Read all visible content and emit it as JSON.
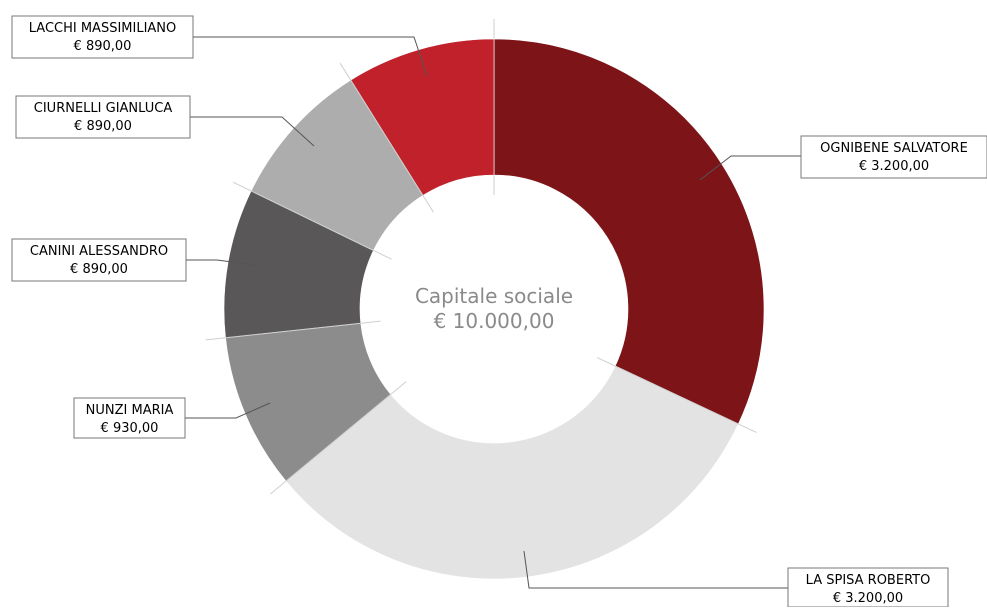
{
  "chart_data": {
    "type": "pie",
    "center": {
      "title": "Capitale sociale",
      "value": "€ 10.000,00"
    },
    "slices": [
      {
        "name": "OGNIBENE SALVATORE",
        "value": 3200,
        "label_value": "€ 3.200,00",
        "color": "#7c1418"
      },
      {
        "name": "LA SPISA ROBERTO",
        "value": 3200,
        "label_value": "€ 3.200,00",
        "color": "#e3e3e3"
      },
      {
        "name": "NUNZI MARIA",
        "value": 930,
        "label_value": "€ 930,00",
        "color": "#8c8c8c"
      },
      {
        "name": "CANINI ALESSANDRO",
        "value": 890,
        "label_value": "€ 890,00",
        "color": "#595757"
      },
      {
        "name": "CIURNELLI GIANLUCA",
        "value": 890,
        "label_value": "€ 890,00",
        "color": "#aeadad"
      },
      {
        "name": "LACCHI MASSIMILIANO",
        "value": 890,
        "label_value": "€ 890,00",
        "color": "#c0212b"
      }
    ]
  }
}
